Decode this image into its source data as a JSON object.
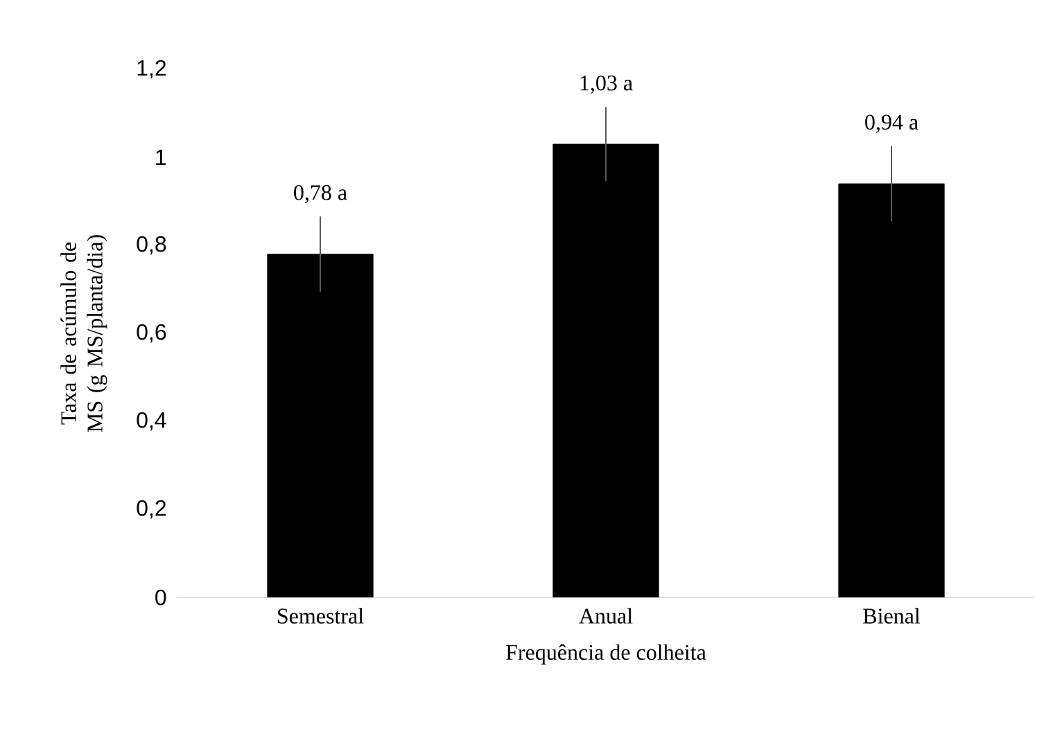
{
  "chart_data": {
    "type": "bar",
    "xlabel": "Frequência de colheita",
    "ylabel": "Taxa de acúmulo de MS (g MS/planta/dia)",
    "categories": [
      "Semestral",
      "Anual",
      "Bienal"
    ],
    "values": [
      0.78,
      1.03,
      0.94
    ],
    "errors": [
      0.073,
      0.072,
      0.073
    ],
    "value_labels": [
      "0,78 a",
      "1,03 a",
      "0,94 a"
    ],
    "color": "#000000",
    "ylim": [
      0,
      1.2
    ],
    "yticks": [
      {
        "value": 0,
        "label": "0"
      },
      {
        "value": 0.2,
        "label": "0,2"
      },
      {
        "value": 0.4,
        "label": "0,4"
      },
      {
        "value": 0.6,
        "label": "0,6"
      },
      {
        "value": 0.8,
        "label": "0,8"
      },
      {
        "value": 1,
        "label": "1"
      },
      {
        "value": 1.2,
        "label": "1,2"
      }
    ],
    "grid": false
  }
}
